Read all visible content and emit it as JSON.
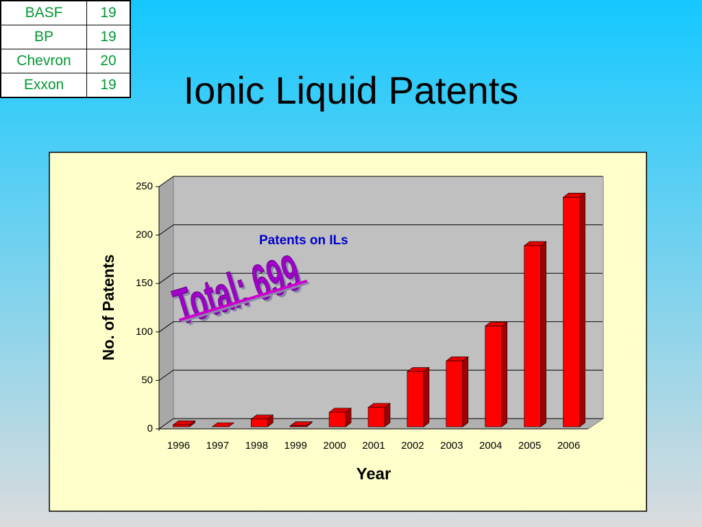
{
  "slide_title": "Ionic Liquid Patents",
  "table": {
    "rows": [
      [
        "BASF",
        19
      ],
      [
        "BP",
        19
      ],
      [
        "Chevron",
        20
      ],
      [
        "Exxon",
        19
      ]
    ]
  },
  "chart_data": {
    "type": "bar",
    "subtitle": "Patents on ILs",
    "annotation": "Total: 699",
    "x_label": "Year",
    "y_label": "No. of Patents",
    "categories": [
      "1996",
      "1997",
      "1998",
      "1999",
      "2000",
      "2001",
      "2002",
      "2003",
      "2004",
      "2005",
      "2006"
    ],
    "values": [
      2,
      0,
      8,
      1,
      15,
      20,
      57,
      68,
      104,
      187,
      237
    ],
    "color": "#ff0000",
    "ylim": [
      0,
      250
    ],
    "yticks": [
      0,
      50,
      100,
      150,
      200,
      250
    ],
    "grid": true
  }
}
